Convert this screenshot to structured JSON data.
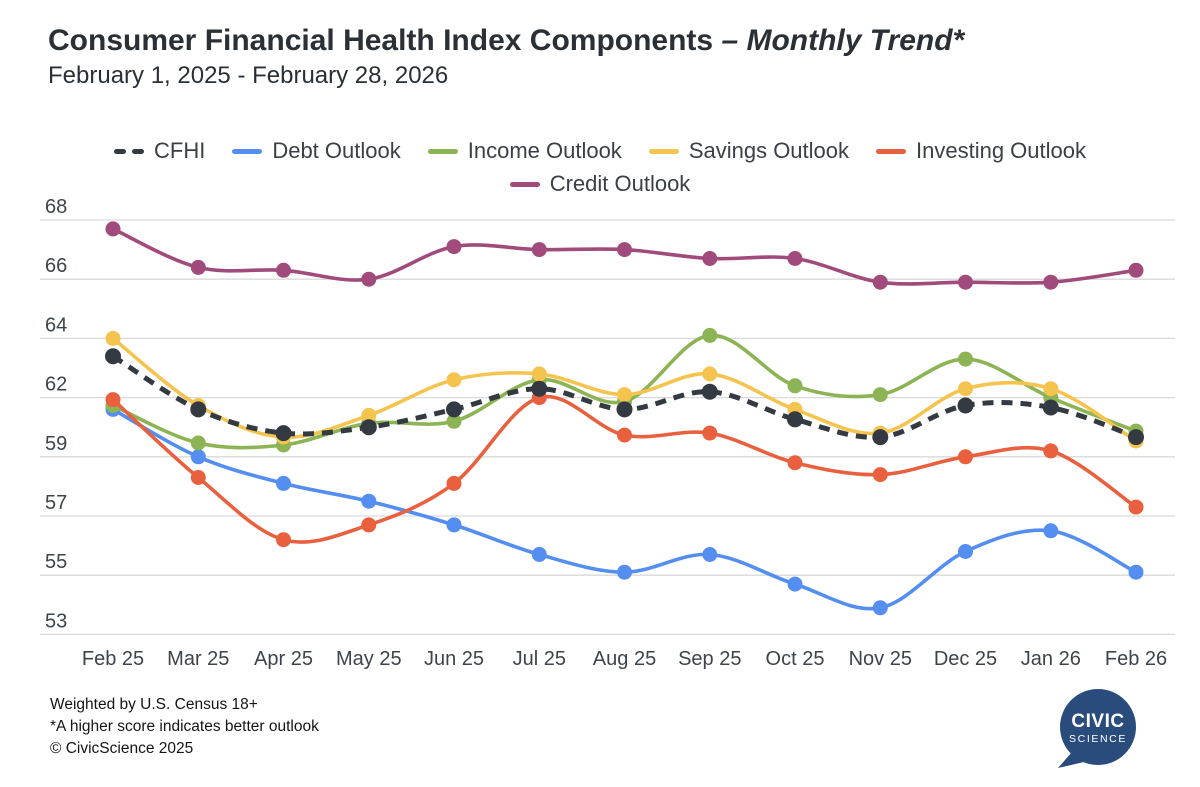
{
  "header": {
    "title_main": "Consumer Financial Health Index Components ",
    "title_accent": "– Monthly Trend*",
    "subtitle": "February 1, 2025 - February 28, 2026"
  },
  "legend": {
    "rows": [
      [
        "CFHI",
        "Debt Outlook",
        "Income Outlook",
        "Savings Outlook",
        "Investing Outlook"
      ],
      [
        "Credit Outlook"
      ]
    ]
  },
  "chart_data": {
    "type": "line",
    "title": "Consumer Financial Health Index Components – Monthly Trend*",
    "subtitle": "February 1, 2025 - February 28, 2026",
    "grid": "horizontal gridlines only",
    "legend_position": "top-center, two rows",
    "categories": [
      "Feb 25",
      "Mar 25",
      "Apr 25",
      "May 25",
      "Jun 25",
      "Jul 25",
      "Aug 25",
      "Sep 25",
      "Oct 25",
      "Nov 25",
      "Dec 25",
      "Jan 26",
      "Feb 26"
    ],
    "y_ticks": [
      68,
      66,
      64,
      62,
      59,
      57,
      55,
      53
    ],
    "series": [
      {
        "name": "Debt Outlook",
        "color": "#548ef0",
        "style": "solid",
        "values": [
          61.4,
          59.0,
          58.1,
          57.5,
          56.7,
          55.7,
          55.1,
          55.7,
          54.7,
          53.9,
          55.8,
          56.5,
          55.1
        ]
      },
      {
        "name": "Income Outlook",
        "color": "#8cb454",
        "style": "solid",
        "values": [
          61.6,
          59.7,
          59.6,
          60.7,
          60.8,
          62.6,
          61.8,
          64.1,
          62.4,
          62.1,
          63.3,
          62.0,
          60.3
        ]
      },
      {
        "name": "Savings Outlook",
        "color": "#f5c44e",
        "style": "solid",
        "values": [
          64.0,
          61.6,
          60.0,
          61.1,
          62.6,
          62.8,
          62.1,
          62.8,
          61.4,
          60.2,
          62.3,
          62.3,
          59.8
        ]
      },
      {
        "name": "Investing Outlook",
        "color": "#e9603f",
        "style": "solid",
        "values": [
          61.9,
          58.3,
          56.2,
          56.7,
          58.1,
          62.0,
          60.1,
          60.2,
          58.8,
          58.4,
          59.0,
          59.3,
          57.3
        ]
      },
      {
        "name": "Credit Outlook",
        "color": "#a04b7c",
        "style": "solid",
        "values": [
          67.7,
          66.4,
          66.3,
          66.0,
          67.1,
          67.0,
          67.0,
          66.7,
          66.7,
          65.9,
          65.9,
          65.9,
          66.3
        ]
      },
      {
        "name": "CFHI",
        "color": "#333a41",
        "style": "dashed",
        "values": [
          63.4,
          61.4,
          60.2,
          60.5,
          61.4,
          62.3,
          61.4,
          62.2,
          60.9,
          60.0,
          61.6,
          61.5,
          60.0
        ]
      }
    ]
  },
  "footer": {
    "lines": [
      "Weighted by U.S. Census 18+",
      "*A higher score indicates better outlook",
      "© CivicScience 2025"
    ]
  },
  "logo": {
    "line1": "CIVIC",
    "line2": "SCIENCE",
    "color": "#2a4c7d"
  },
  "colors": {
    "background": "#ffffff",
    "gridline": "#d9d9d9",
    "axis_text": "#3e444b",
    "title_text": "#2b3036"
  }
}
